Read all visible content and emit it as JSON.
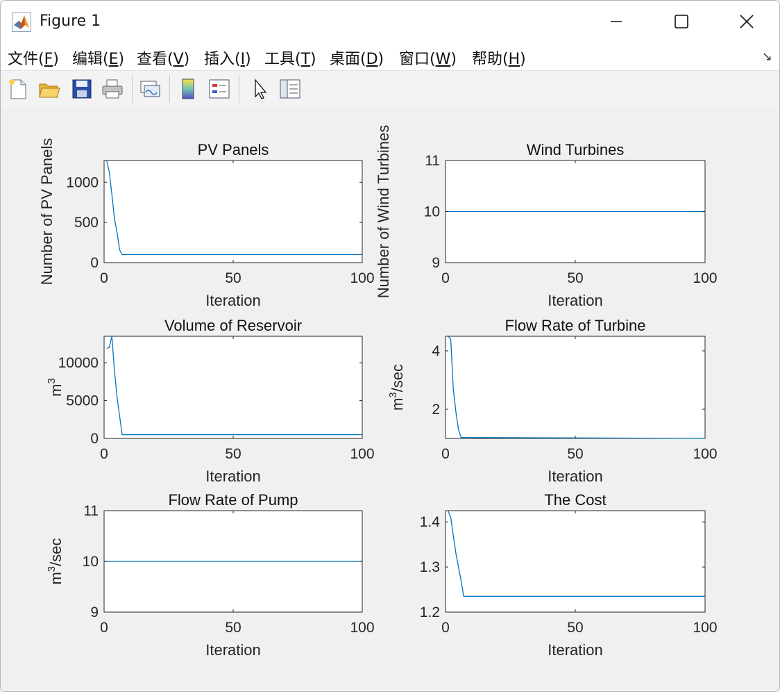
{
  "window": {
    "title": "Figure 1"
  },
  "menu": [
    {
      "label": "文件(",
      "key": "F",
      "end": ")"
    },
    {
      "label": "编辑(",
      "key": "E",
      "end": ")"
    },
    {
      "label": "查看(",
      "key": "V",
      "end": ")"
    },
    {
      "label": "插入(",
      "key": "I",
      "end": ")"
    },
    {
      "label": "工具(",
      "key": "T",
      "end": ")"
    },
    {
      "label": "桌面(",
      "key": "D",
      "end": ")"
    },
    {
      "label": "窗口(",
      "key": "W",
      "end": ")"
    },
    {
      "label": "帮助(",
      "key": "H",
      "end": ")"
    }
  ],
  "toolbar": [
    "new-figure-icon",
    "open-file-icon",
    "save-icon",
    "print-icon",
    "link-plot-icon",
    "colorbar-icon",
    "legend-icon",
    "pointer-icon",
    "property-inspector-icon"
  ],
  "colors": {
    "line": "#0072bd",
    "axes": "#262626"
  },
  "chart_data": [
    {
      "type": "line",
      "title": "PV Panels",
      "xlabel": "Iteration",
      "ylabel": "Number of PV Panels",
      "xlim": [
        0,
        100
      ],
      "ylim": [
        0,
        1270
      ],
      "xticks": [
        0,
        50,
        100
      ],
      "yticks": [
        0,
        500,
        1000
      ],
      "yticklabels": [
        "0",
        "500",
        "1000"
      ],
      "x": [
        1,
        2,
        3,
        4,
        5,
        6,
        7,
        100
      ],
      "y": [
        1270,
        1130,
        850,
        550,
        380,
        160,
        100,
        100
      ]
    },
    {
      "type": "line",
      "title": "Wind Turbines",
      "xlabel": "Iteration",
      "ylabel": "Number of Wind Turbines",
      "xlim": [
        0,
        100
      ],
      "ylim": [
        9,
        11
      ],
      "xticks": [
        0,
        50,
        100
      ],
      "yticks": [
        9,
        10,
        11
      ],
      "yticklabels": [
        "9",
        "10",
        "11"
      ],
      "x": [
        0,
        100
      ],
      "y": [
        10,
        10
      ]
    },
    {
      "type": "line",
      "title": "Volume of Reservoir",
      "xlabel": "Iteration",
      "ylabel": "m",
      "ylabel_sup": "3",
      "xlim": [
        0,
        100
      ],
      "ylim": [
        0,
        13500
      ],
      "xticks": [
        0,
        50,
        100
      ],
      "yticks": [
        0,
        5000,
        10000
      ],
      "yticklabels": [
        "0",
        "5000",
        "10000"
      ],
      "x": [
        1,
        2,
        3,
        4,
        5,
        6,
        7,
        100
      ],
      "y": [
        11900,
        12000,
        13500,
        9000,
        5500,
        3000,
        500,
        500
      ]
    },
    {
      "type": "line",
      "title": "Flow Rate of Turbine",
      "xlabel": "Iteration",
      "ylabel": "m",
      "ylabel_sup": "3",
      "ylabel_suffix": "/sec",
      "xlim": [
        0,
        100
      ],
      "ylim": [
        1,
        4.5
      ],
      "xticks": [
        0,
        50,
        100
      ],
      "yticks": [
        2,
        4
      ],
      "yticklabels": [
        "2",
        "4"
      ],
      "x": [
        1,
        2,
        3,
        4,
        5,
        6,
        100
      ],
      "y": [
        4.5,
        4.4,
        2.7,
        1.9,
        1.3,
        1.03,
        1.0
      ]
    },
    {
      "type": "line",
      "title": "Flow Rate of Pump",
      "xlabel": "Iteration",
      "ylabel": "m",
      "ylabel_sup": "3",
      "ylabel_suffix": "/sec",
      "xlim": [
        0,
        100
      ],
      "ylim": [
        9,
        11
      ],
      "xticks": [
        0,
        50,
        100
      ],
      "yticks": [
        9,
        10,
        11
      ],
      "yticklabels": [
        "9",
        "10",
        "11"
      ],
      "x": [
        0,
        100
      ],
      "y": [
        10,
        10
      ]
    },
    {
      "type": "line",
      "title": "The Cost",
      "xlabel": "Iteration",
      "ylabel": "",
      "xlim": [
        0,
        100
      ],
      "ylim": [
        1.2,
        1.425
      ],
      "xticks": [
        0,
        50,
        100
      ],
      "yticks": [
        1.2,
        1.3,
        1.4
      ],
      "yticklabels": [
        "1.2",
        "1.3",
        "1.4"
      ],
      "x": [
        1,
        2,
        3,
        4,
        5,
        6,
        7,
        100
      ],
      "y": [
        1.425,
        1.41,
        1.37,
        1.33,
        1.3,
        1.27,
        1.235,
        1.235
      ]
    }
  ]
}
